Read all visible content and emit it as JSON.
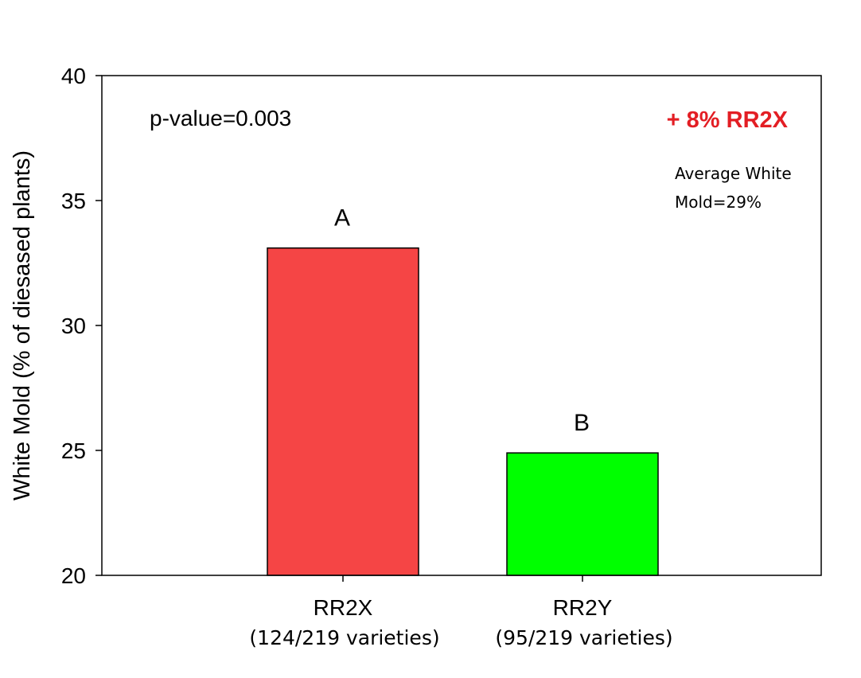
{
  "chart_data": {
    "type": "bar",
    "categories": [
      "RR2X",
      "RR2Y"
    ],
    "category_sublabels": [
      "(124/219 varieties)",
      "(95/219 varieties)"
    ],
    "values": [
      33.1,
      24.9
    ],
    "bar_colors": [
      "#f54545",
      "#00ff00"
    ],
    "significance_letters": [
      "A",
      "B"
    ],
    "ylabel": "White Mold (% of diesased plants)",
    "xlabel": "",
    "ylim": [
      20,
      40
    ],
    "yticks": [
      20,
      25,
      30,
      35,
      40
    ],
    "grid": false,
    "legend": "none",
    "annotations": {
      "p_value": "p-value=0.003",
      "difference": "+ 8% RR2X",
      "difference_color": "#e31e24",
      "average_line1": "Average White",
      "average_line2": "Mold=29%"
    }
  }
}
